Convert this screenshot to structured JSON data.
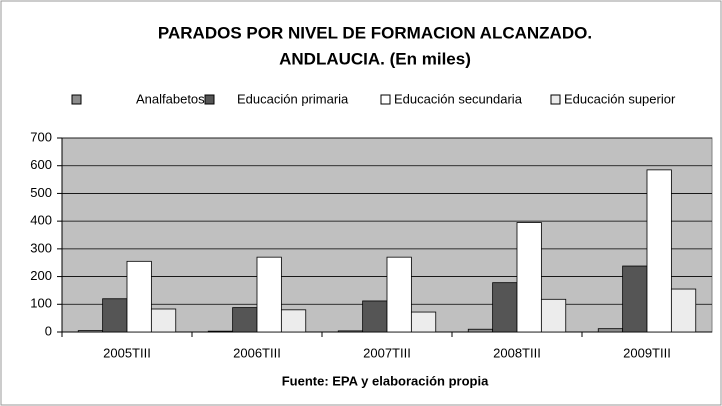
{
  "chart_data": {
    "type": "bar",
    "title": [
      "PARADOS POR NIVEL DE FORMACION ALCANZADO.",
      "ANDLAUCIA. (En miles)"
    ],
    "xlabel": "Fuente: EPA y elaboración propia",
    "categories": [
      "2005TIII",
      "2006TIII",
      "2007TIII",
      "2008TIII",
      "2009TIII"
    ],
    "series": [
      {
        "name": "Analfabetos",
        "color": "#8c8c8c",
        "values": [
          5,
          3,
          4,
          10,
          12
        ]
      },
      {
        "name": "Educación primaria",
        "color": "#555555",
        "values": [
          120,
          88,
          112,
          178,
          238
        ]
      },
      {
        "name": "Educación secundaria",
        "color": "#ffffff",
        "values": [
          255,
          270,
          270,
          395,
          585
        ]
      },
      {
        "name": "Educación superior",
        "color": "#ececec",
        "values": [
          83,
          80,
          72,
          118,
          155
        ]
      }
    ],
    "ylim": [
      0,
      700
    ],
    "yticks": [
      0,
      100,
      200,
      300,
      400,
      500,
      600,
      700
    ],
    "grid": true,
    "plot_background": "#c0c0c0"
  }
}
